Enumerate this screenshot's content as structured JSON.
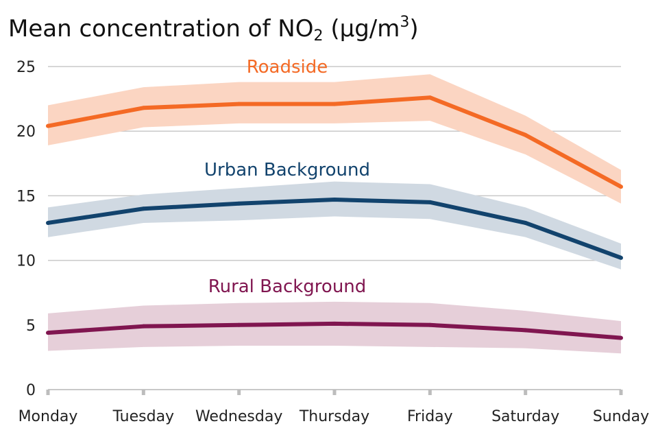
{
  "title": {
    "prefix": "Mean concentration of NO",
    "subscript": "2",
    "middle": " (µg/m",
    "superscript": "3",
    "suffix": ")"
  },
  "chart_data": {
    "type": "line",
    "categories": [
      "Monday",
      "Tuesday",
      "Wednesday",
      "Thursday",
      "Friday",
      "Saturday",
      "Sunday"
    ],
    "ylim": [
      0,
      25
    ],
    "yticks": [
      "0",
      "5",
      "10",
      "15",
      "20",
      "25"
    ],
    "grid": true,
    "series": [
      {
        "name": "Roadside",
        "color": "#f46a25",
        "band_color": "#fbd5c2",
        "values": [
          20.4,
          21.8,
          22.1,
          22.1,
          22.6,
          19.7,
          15.7
        ],
        "lower": [
          18.9,
          20.3,
          20.6,
          20.6,
          20.8,
          18.2,
          14.4
        ],
        "upper": [
          22.0,
          23.4,
          23.8,
          23.8,
          24.4,
          21.2,
          17.0
        ]
      },
      {
        "name": "Urban Background",
        "color": "#12436d",
        "band_color": "#d0d9e2",
        "values": [
          12.9,
          14.0,
          14.4,
          14.7,
          14.5,
          12.9,
          10.2
        ],
        "lower": [
          11.8,
          12.9,
          13.1,
          13.4,
          13.2,
          11.8,
          9.3
        ],
        "upper": [
          14.1,
          15.1,
          15.6,
          16.1,
          15.9,
          14.1,
          11.3
        ]
      },
      {
        "name": "Rural Background",
        "color": "#801650",
        "band_color": "#e6cfd9",
        "values": [
          4.4,
          4.9,
          5.0,
          5.1,
          5.0,
          4.6,
          4.0
        ],
        "lower": [
          3.0,
          3.3,
          3.4,
          3.4,
          3.3,
          3.2,
          2.8
        ],
        "upper": [
          5.9,
          6.5,
          6.7,
          6.8,
          6.7,
          6.1,
          5.3
        ]
      }
    ]
  }
}
